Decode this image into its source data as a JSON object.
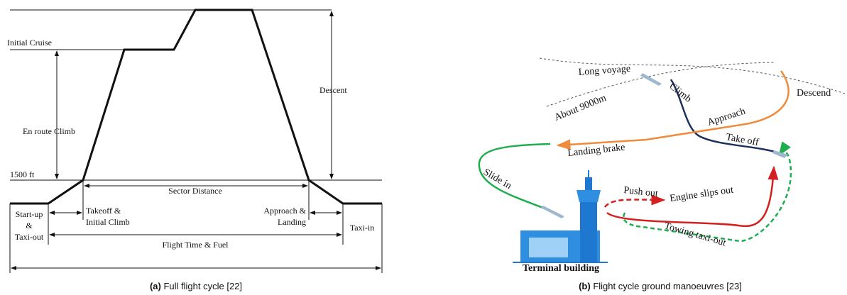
{
  "left_panel": {
    "initial_cruise": "Initial Cruise",
    "en_route_climb": "En route Climb",
    "altitude_1500": "1500 ft",
    "descent": "Descent",
    "sector_distance": "Sector Distance",
    "takeoff": [
      "Takeoff &",
      "Initial Climb"
    ],
    "approach": [
      "Approach &",
      "Landing"
    ],
    "startup": [
      "Start-up",
      "&",
      "Taxi-out"
    ],
    "taxi_in": "Taxi-in",
    "flight_time": "Flight Time & Fuel",
    "caption_tag": "(a)",
    "caption_text": "Full flight cycle [22]"
  },
  "right_panel": {
    "long_voyage": "Long voyage",
    "about_9000": "About 9000m",
    "climb": "Climb",
    "descend": "Descend",
    "approach": "Approach",
    "landing_brake": "Landing brake",
    "take_off": "Take off",
    "slide_in": "Slide in",
    "push_out": "Push out",
    "engine_slips_out": "Engine slips out",
    "towing_taxi_out": "Towing taxi-out",
    "terminal_building": "Terminal building",
    "caption_tag": "(b)",
    "caption_text": "Flight cycle ground manoeuvres [23]"
  }
}
